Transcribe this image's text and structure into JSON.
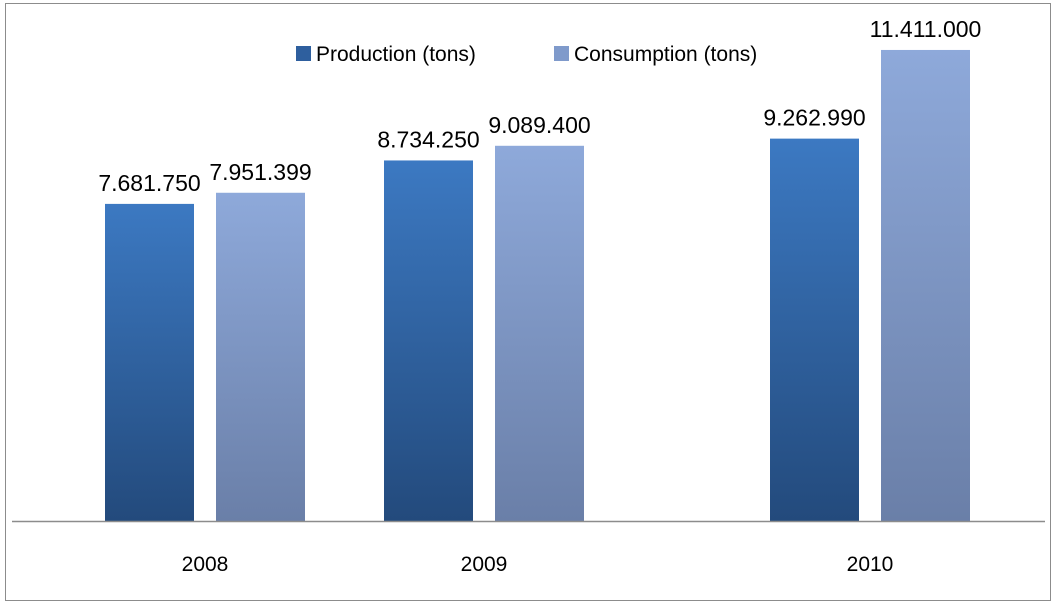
{
  "chart_data": {
    "type": "bar",
    "categories": [
      "2008",
      "2009",
      "2010"
    ],
    "series": [
      {
        "name": "Production (tons)",
        "values": [
          7681750,
          8734250,
          9262990
        ],
        "labels": [
          "7.681.750",
          "8.734.250",
          "9.262.990"
        ],
        "color": "#2E5F9E"
      },
      {
        "name": "Consumption (tons)",
        "values": [
          7951399,
          9089400,
          11411000
        ],
        "labels": [
          "7.951.399",
          "9.089.400",
          "11.411.000"
        ],
        "color": "#7F9ACB"
      }
    ],
    "ylim": [
      0,
      12500000
    ],
    "grid": false,
    "legend_position": "top"
  }
}
